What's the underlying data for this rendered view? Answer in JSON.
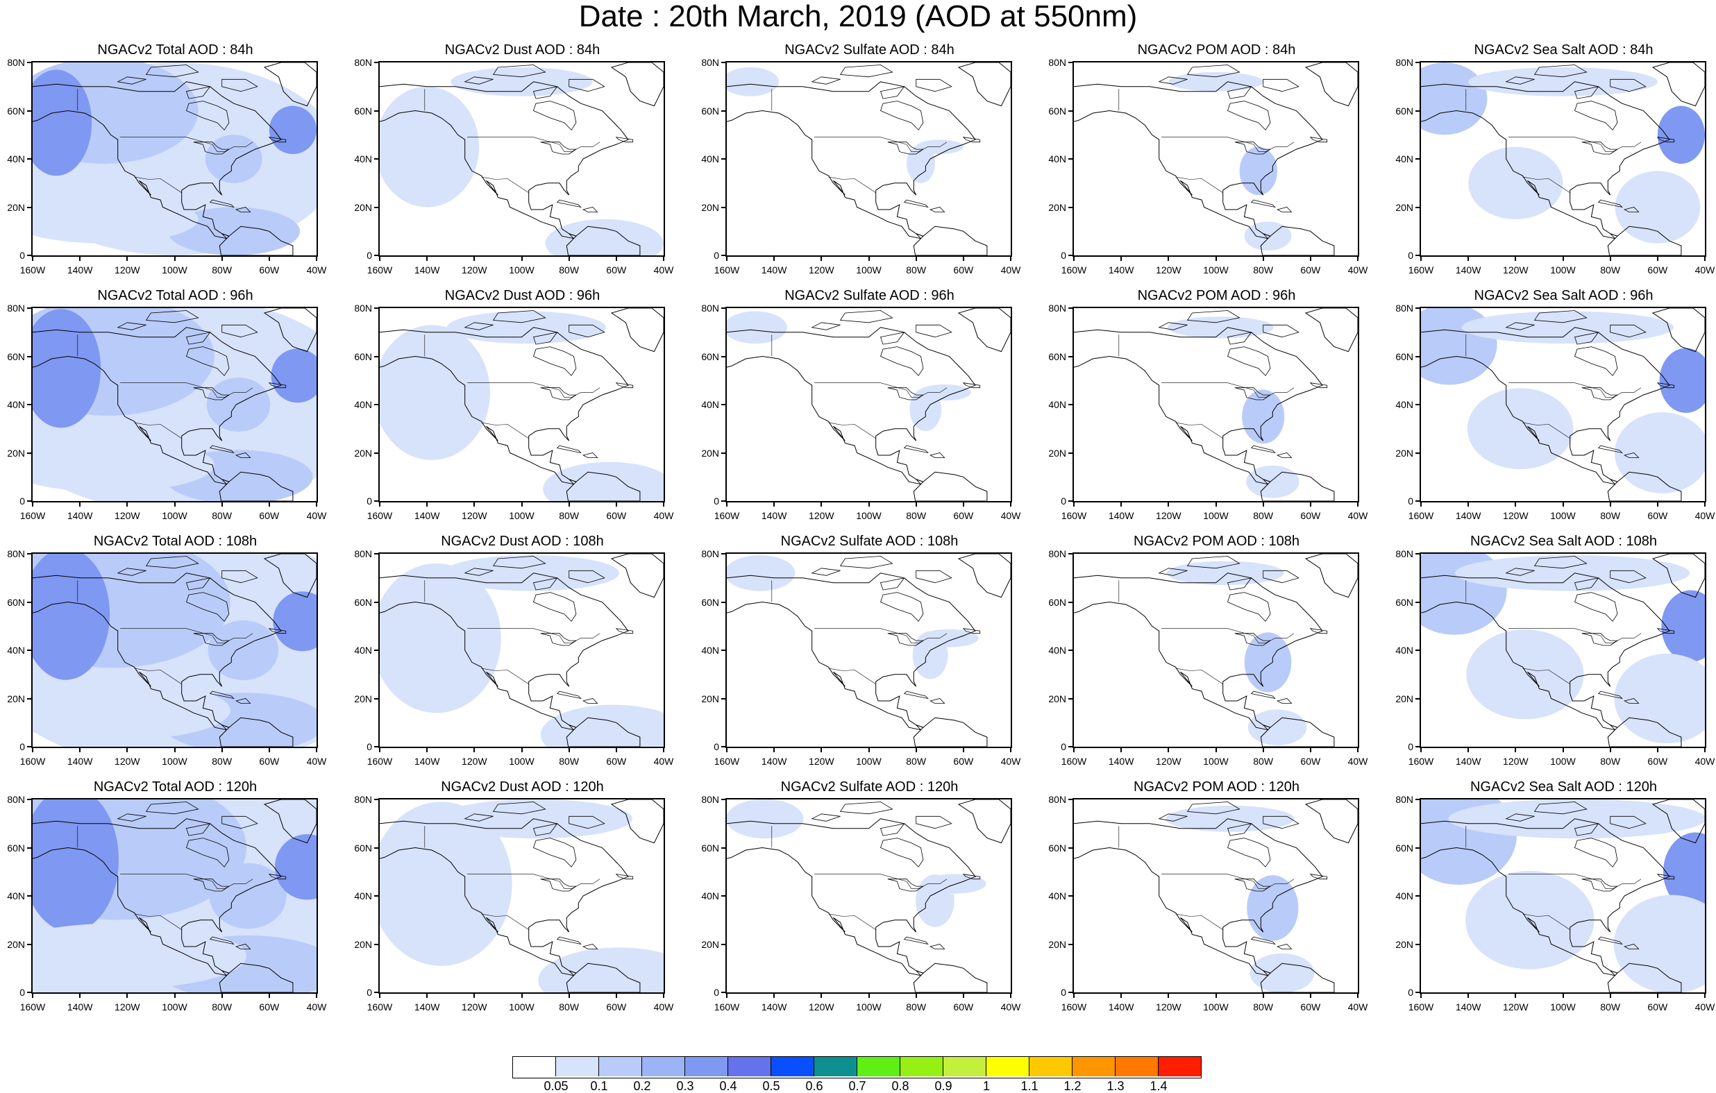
{
  "title": "Date : 20th March, 2019 (AOD at 550nm)",
  "species_titles": [
    [
      "NGACv2 Total AOD : 84h",
      "NGACv2 Dust AOD : 84h",
      "NGACv2 Sulfate AOD : 84h",
      "NGACv2 POM AOD : 84h",
      "NGACv2 Sea Salt AOD : 84h"
    ],
    [
      "NGACv2 Total AOD : 96h",
      "NGACv2 Dust AOD : 96h",
      "NGACv2 Sulfate AOD : 96h",
      "NGACv2 POM AOD : 96h",
      "NGACv2 Sea Salt AOD : 96h"
    ],
    [
      "NGACv2 Total AOD : 108h",
      "NGACv2 Dust AOD : 108h",
      "NGACv2 Sulfate AOD : 108h",
      "NGACv2 POM AOD : 108h",
      "NGACv2 Sea Salt AOD : 108h"
    ],
    [
      "NGACv2 Total AOD : 120h",
      "NGACv2 Dust AOD : 120h",
      "NGACv2 Sulfate AOD : 120h",
      "NGACv2 POM AOD : 120h",
      "NGACv2 Sea Salt  AOD : 120h"
    ]
  ],
  "lat_ticks": [
    "80N",
    "60N",
    "40N",
    "20N",
    "0"
  ],
  "lon_ticks": [
    "160W",
    "140W",
    "120W",
    "100W",
    "80W",
    "60W",
    "40W"
  ],
  "map_extent": {
    "lon": [
      -160,
      -40
    ],
    "lat": [
      0,
      80
    ]
  },
  "colorbar": {
    "labels": [
      "0.05",
      "0.1",
      "0.2",
      "0.3",
      "0.4",
      "0.5",
      "0.6",
      "0.7",
      "0.8",
      "0.9",
      "1",
      "1.1",
      "1.2",
      "1.3",
      "1.4"
    ],
    "colors": [
      "#ffffff",
      "#d7e2fb",
      "#b9cbf8",
      "#9bb4f5",
      "#7f98f1",
      "#6472ec",
      "#0a4fff",
      "#0f9090",
      "#5ef014",
      "#96f014",
      "#c3f03c",
      "#ffff00",
      "#ffc800",
      "#ff9600",
      "#ff7800",
      "#ff1e00"
    ]
  },
  "colors": {
    "land_outline": "#000000",
    "aerosol_light": "#d7e2fb",
    "aerosol_mid": "#b9cbf8",
    "aerosol_high": "#7f98f1"
  }
}
